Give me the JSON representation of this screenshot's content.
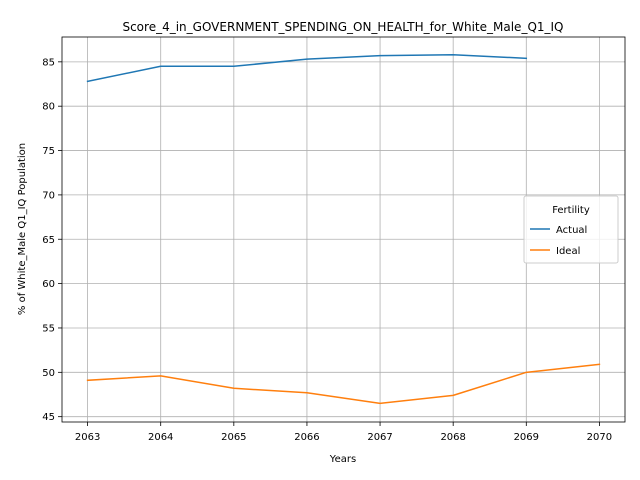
{
  "chart_data": {
    "type": "line",
    "title": "Score_4_in_GOVERNMENT_SPENDING_ON_HEALTH_for_White_Male_Q1_IQ",
    "xlabel": "Years",
    "ylabel": "% of White_Male Q1_IQ Population",
    "x": [
      2063,
      2064,
      2065,
      2066,
      2067,
      2068,
      2069,
      2070
    ],
    "xlim": [
      2062.65,
      2070.35
    ],
    "ylim": [
      44.4,
      87.8
    ],
    "yticks": [
      45,
      50,
      55,
      60,
      65,
      70,
      75,
      80,
      85
    ],
    "grid": true,
    "legend": {
      "title": "Fertility",
      "placement": "center-right"
    },
    "series": [
      {
        "name": "Actual",
        "color": "#1f77b4",
        "values": [
          82.8,
          84.5,
          84.5,
          85.3,
          85.7,
          85.8,
          85.4,
          null
        ]
      },
      {
        "name": "Ideal",
        "color": "#ff7f0e",
        "values": [
          49.1,
          49.6,
          48.2,
          47.7,
          46.5,
          47.4,
          50.0,
          50.9
        ]
      }
    ]
  }
}
